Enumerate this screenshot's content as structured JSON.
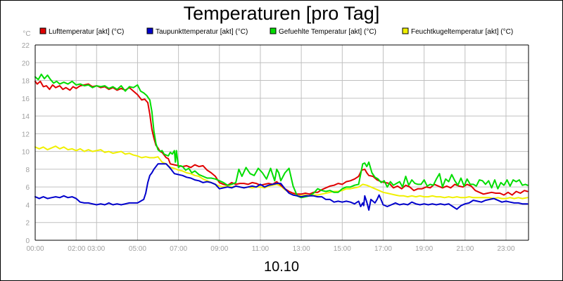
{
  "chart_data": {
    "type": "line",
    "title": "Temperaturen [pro Tag]",
    "unit_label": "°C",
    "xlabel": "10.10",
    "x_tick_labels": [
      "00:00",
      "02:00 03:00",
      "05:00",
      "07:00",
      "09:00",
      "11:00",
      "13:00",
      "15:00",
      "17:00",
      "19:00",
      "21:00",
      "23:00"
    ],
    "x_tick_hours": [
      0,
      2.5,
      5,
      7,
      9,
      11,
      13,
      15,
      17,
      19,
      21,
      23
    ],
    "x_grid_hours": [
      0,
      2,
      3,
      5,
      7,
      9,
      11,
      13,
      15,
      17,
      19,
      21,
      23
    ],
    "xlim": [
      0,
      24.1
    ],
    "ylim": [
      0,
      22
    ],
    "y_ticks": [
      0,
      2,
      4,
      6,
      8,
      10,
      12,
      14,
      16,
      18,
      20,
      22
    ],
    "grid": true,
    "legend_position": "top",
    "series": [
      {
        "name": "Lufttemperatur [akt] (°C)",
        "color": "#e00000",
        "x": [
          0,
          0.1,
          0.25,
          0.4,
          0.55,
          0.7,
          0.85,
          1.0,
          1.2,
          1.35,
          1.5,
          1.7,
          1.85,
          2.0,
          2.2,
          2.4,
          2.6,
          2.8,
          3.0,
          3.2,
          3.4,
          3.6,
          3.8,
          4.0,
          4.2,
          4.4,
          4.6,
          4.8,
          5.0,
          5.2,
          5.35,
          5.5,
          5.6,
          5.7,
          5.8,
          5.9,
          6.0,
          6.1,
          6.2,
          6.3,
          6.4,
          6.5,
          6.6,
          6.8,
          7.0,
          7.2,
          7.4,
          7.6,
          7.8,
          8.0,
          8.2,
          8.4,
          8.6,
          8.8,
          9.0,
          9.2,
          9.4,
          9.6,
          9.8,
          10.0,
          10.2,
          10.4,
          10.6,
          10.8,
          11.0,
          11.2,
          11.4,
          11.6,
          11.8,
          12.0,
          12.2,
          12.4,
          12.6,
          12.8,
          13.0,
          13.2,
          13.4,
          13.6,
          13.8,
          14.0,
          14.2,
          14.4,
          14.6,
          14.8,
          15.0,
          15.2,
          15.4,
          15.6,
          15.8,
          15.95,
          16.1,
          16.2,
          16.3,
          16.5,
          16.7,
          16.9,
          17.1,
          17.3,
          17.5,
          17.7,
          17.9,
          18.1,
          18.3,
          18.5,
          18.7,
          18.9,
          19.1,
          19.3,
          19.5,
          19.7,
          19.9,
          20.1,
          20.3,
          20.5,
          20.7,
          20.9,
          21.1,
          21.3,
          21.5,
          21.7,
          21.9,
          22.1,
          22.3,
          22.5,
          22.7,
          22.9,
          23.1,
          23.3,
          23.5,
          23.7,
          23.9,
          24.05
        ],
        "values": [
          17.9,
          17.6,
          17.9,
          17.3,
          17.4,
          17.0,
          17.5,
          17.2,
          17.4,
          17.0,
          17.2,
          16.9,
          17.3,
          17.1,
          17.4,
          17.5,
          17.6,
          17.3,
          17.4,
          17.2,
          17.3,
          17.0,
          17.2,
          16.9,
          17.1,
          16.9,
          17.2,
          16.8,
          16.4,
          15.8,
          15.9,
          15.5,
          14.2,
          12.5,
          11.5,
          10.7,
          10.4,
          10.0,
          9.9,
          9.6,
          9.3,
          9.2,
          8.6,
          8.5,
          8.4,
          8.3,
          8.4,
          8.2,
          8.5,
          8.3,
          8.4,
          7.9,
          7.6,
          7.2,
          6.5,
          6.3,
          6.2,
          6.5,
          6.3,
          6.4,
          6.4,
          6.3,
          6.5,
          6.4,
          6.2,
          6.3,
          6.4,
          6.3,
          6.6,
          6.2,
          5.8,
          5.5,
          5.3,
          5.2,
          5.2,
          5.3,
          5.2,
          5.4,
          5.4,
          5.7,
          5.9,
          6.1,
          6.2,
          6.4,
          6.3,
          6.6,
          6.7,
          6.9,
          7.2,
          7.9,
          8.0,
          7.6,
          7.3,
          7.2,
          6.8,
          6.6,
          6.5,
          6.4,
          5.9,
          6.1,
          5.8,
          6.2,
          6.0,
          5.6,
          5.8,
          5.8,
          6.0,
          5.9,
          6.3,
          6.1,
          5.9,
          6.1,
          5.9,
          6.3,
          6.1,
          6.0,
          6.3,
          6.1,
          5.6,
          5.4,
          5.2,
          5.3,
          5.4,
          5.3,
          5.3,
          5.1,
          5.4,
          5.1,
          5.5,
          5.3,
          5.6,
          5.5
        ]
      },
      {
        "name": "Taupunkttemperatur [akt] (°C)",
        "color": "#0000cc",
        "x": [
          0,
          0.2,
          0.4,
          0.6,
          0.8,
          1.0,
          1.2,
          1.4,
          1.6,
          1.8,
          2.0,
          2.2,
          2.4,
          2.6,
          2.8,
          3.0,
          3.2,
          3.4,
          3.6,
          3.8,
          4.0,
          4.2,
          4.4,
          4.6,
          4.8,
          5.0,
          5.15,
          5.3,
          5.4,
          5.5,
          5.6,
          5.7,
          5.8,
          6.0,
          6.2,
          6.4,
          6.6,
          6.8,
          7.0,
          7.2,
          7.4,
          7.6,
          7.8,
          8.0,
          8.2,
          8.4,
          8.6,
          8.8,
          9.0,
          9.2,
          9.4,
          9.6,
          9.8,
          10.0,
          10.2,
          10.4,
          10.6,
          10.8,
          11.0,
          11.2,
          11.4,
          11.6,
          11.8,
          12.0,
          12.2,
          12.4,
          12.6,
          12.8,
          13.0,
          13.2,
          13.4,
          13.6,
          13.8,
          14.0,
          14.2,
          14.4,
          14.6,
          14.8,
          15.0,
          15.2,
          15.4,
          15.6,
          15.8,
          15.9,
          16.0,
          16.05,
          16.1,
          16.2,
          16.3,
          16.4,
          16.5,
          16.6,
          16.7,
          16.8,
          17.0,
          17.2,
          17.4,
          17.6,
          17.8,
          18.0,
          18.2,
          18.4,
          18.6,
          18.8,
          19.0,
          19.2,
          19.4,
          19.6,
          19.8,
          20.0,
          20.2,
          20.4,
          20.6,
          20.8,
          21.0,
          21.2,
          21.4,
          21.6,
          21.8,
          22.0,
          22.2,
          22.4,
          22.6,
          22.8,
          23.0,
          23.2,
          23.4,
          23.6,
          23.8,
          24.05
        ],
        "values": [
          4.9,
          4.7,
          4.9,
          4.7,
          4.8,
          4.9,
          4.8,
          5.0,
          4.8,
          4.9,
          4.7,
          4.3,
          4.2,
          4.2,
          4.1,
          4.0,
          4.1,
          4.0,
          4.2,
          4.0,
          4.1,
          4.0,
          4.1,
          4.2,
          4.2,
          4.2,
          4.4,
          4.6,
          5.3,
          6.5,
          7.3,
          7.6,
          8.0,
          8.6,
          8.6,
          8.6,
          8.1,
          7.5,
          7.4,
          7.3,
          7.1,
          7.0,
          6.8,
          6.7,
          6.5,
          6.6,
          6.5,
          6.3,
          5.8,
          5.9,
          6.0,
          5.9,
          6.1,
          6.0,
          5.9,
          6.0,
          6.1,
          6.0,
          6.3,
          6.0,
          6.2,
          6.3,
          6.4,
          6.4,
          5.8,
          5.3,
          5.1,
          5.0,
          4.9,
          5.0,
          5.0,
          5.0,
          4.9,
          4.9,
          4.6,
          4.6,
          4.3,
          4.4,
          4.3,
          4.4,
          4.3,
          4.1,
          4.4,
          3.8,
          4.2,
          3.9,
          5.0,
          4.3,
          3.4,
          4.6,
          4.4,
          4.2,
          4.6,
          5.1,
          4.0,
          3.8,
          4.0,
          4.2,
          4.0,
          4.1,
          4.0,
          4.3,
          4.1,
          4.0,
          4.1,
          4.0,
          4.1,
          4.0,
          4.1,
          4.0,
          4.1,
          3.8,
          3.5,
          3.9,
          4.1,
          4.2,
          4.5,
          4.4,
          4.3,
          4.5,
          4.6,
          4.7,
          4.5,
          4.3,
          4.4,
          4.3,
          4.2,
          4.2,
          4.1,
          4.1
        ]
      },
      {
        "name": "Gefuehlte Temperatur [akt] (°C)",
        "color": "#00dd00",
        "x": [
          0,
          0.15,
          0.3,
          0.45,
          0.6,
          0.75,
          0.9,
          1.05,
          1.2,
          1.4,
          1.6,
          1.8,
          2.0,
          2.2,
          2.4,
          2.6,
          2.8,
          3.0,
          3.2,
          3.4,
          3.6,
          3.8,
          4.0,
          4.2,
          4.4,
          4.6,
          4.8,
          5.0,
          5.15,
          5.3,
          5.45,
          5.6,
          5.7,
          5.8,
          5.9,
          6.0,
          6.1,
          6.2,
          6.3,
          6.5,
          6.6,
          6.7,
          6.8,
          6.85,
          6.9,
          7.0,
          7.1,
          7.2,
          7.35,
          7.5,
          7.65,
          7.8,
          8.0,
          8.2,
          8.4,
          8.6,
          8.8,
          9.0,
          9.2,
          9.4,
          9.6,
          9.8,
          9.95,
          10.1,
          10.3,
          10.5,
          10.7,
          10.9,
          11.1,
          11.3,
          11.5,
          11.7,
          11.8,
          11.9,
          12.0,
          12.2,
          12.4,
          12.6,
          12.8,
          13.0,
          13.2,
          13.4,
          13.6,
          13.8,
          14.0,
          14.2,
          14.4,
          14.6,
          14.8,
          15.0,
          15.2,
          15.4,
          15.6,
          15.8,
          16.0,
          16.1,
          16.2,
          16.3,
          16.45,
          16.6,
          16.75,
          16.9,
          17.05,
          17.2,
          17.35,
          17.5,
          17.65,
          17.8,
          17.95,
          18.1,
          18.25,
          18.4,
          18.55,
          18.7,
          18.85,
          19.0,
          19.15,
          19.3,
          19.45,
          19.6,
          19.75,
          19.9,
          20.05,
          20.2,
          20.35,
          20.5,
          20.65,
          20.8,
          20.95,
          21.1,
          21.25,
          21.4,
          21.55,
          21.7,
          21.85,
          22.0,
          22.15,
          22.3,
          22.45,
          22.6,
          22.75,
          22.9,
          23.05,
          23.2,
          23.35,
          23.5,
          23.65,
          23.8,
          23.95,
          24.05
        ],
        "values": [
          18.4,
          18.1,
          18.7,
          18.2,
          18.6,
          18.1,
          17.7,
          17.9,
          17.6,
          17.8,
          17.6,
          17.9,
          17.5,
          17.6,
          17.4,
          17.5,
          17.2,
          17.4,
          17.3,
          17.4,
          17.1,
          17.3,
          17.0,
          17.4,
          16.8,
          17.3,
          17.2,
          17.5,
          16.8,
          16.6,
          16.3,
          15.8,
          14.5,
          12.3,
          10.9,
          10.2,
          10.0,
          10.1,
          9.7,
          9.5,
          9.9,
          9.7,
          10.1,
          8.8,
          10.1,
          8.2,
          8.4,
          8.3,
          7.9,
          8.1,
          7.6,
          7.8,
          7.4,
          7.2,
          7.0,
          7.0,
          6.9,
          6.7,
          6.5,
          6.2,
          6.3,
          6.5,
          8.0,
          7.2,
          8.2,
          7.5,
          7.3,
          8.1,
          7.6,
          6.9,
          8.1,
          6.7,
          8.0,
          7.6,
          6.7,
          7.6,
          8.1,
          6.1,
          5.0,
          4.8,
          4.9,
          5.0,
          5.3,
          5.8,
          5.6,
          5.5,
          5.6,
          5.4,
          5.4,
          5.8,
          6.0,
          6.0,
          6.2,
          6.3,
          8.6,
          8.7,
          8.3,
          8.8,
          7.6,
          7.1,
          6.9,
          6.5,
          6.7,
          6.0,
          6.6,
          6.2,
          6.4,
          6.6,
          6.0,
          7.2,
          6.2,
          6.8,
          6.4,
          6.3,
          6.3,
          6.8,
          6.1,
          6.3,
          6.2,
          6.9,
          7.5,
          6.0,
          6.9,
          6.6,
          7.4,
          6.7,
          6.2,
          7.0,
          6.1,
          6.9,
          6.3,
          6.3,
          6.1,
          6.8,
          6.7,
          6.3,
          6.7,
          5.9,
          6.8,
          5.8,
          6.5,
          6.2,
          6.8,
          6.1,
          6.8,
          6.6,
          6.8,
          6.2,
          6.3,
          6.2
        ]
      },
      {
        "name": "Feuchtkugeltemperatur [akt] (°C)",
        "color": "#f0f000",
        "x": [
          0,
          0.2,
          0.4,
          0.6,
          0.8,
          1.0,
          1.2,
          1.4,
          1.6,
          1.8,
          2.0,
          2.2,
          2.4,
          2.6,
          2.8,
          3.0,
          3.2,
          3.4,
          3.6,
          3.8,
          4.0,
          4.2,
          4.4,
          4.6,
          4.8,
          5.0,
          5.2,
          5.4,
          5.6,
          5.8,
          6.0,
          6.2,
          6.4,
          6.6,
          6.8,
          7.0,
          7.2,
          7.4,
          7.6,
          7.8,
          8.0,
          8.2,
          8.4,
          8.6,
          8.8,
          9.0,
          9.2,
          9.4,
          9.6,
          9.8,
          10.0,
          10.2,
          10.4,
          10.6,
          10.8,
          11.0,
          11.2,
          11.4,
          11.6,
          11.8,
          12.0,
          12.2,
          12.4,
          12.6,
          12.8,
          13.0,
          13.2,
          13.4,
          13.6,
          13.8,
          14.0,
          14.2,
          14.4,
          14.6,
          14.8,
          15.0,
          15.2,
          15.4,
          15.6,
          15.8,
          16.0,
          16.2,
          16.4,
          16.6,
          16.8,
          17.0,
          17.2,
          17.4,
          17.6,
          17.8,
          18.0,
          18.2,
          18.4,
          18.6,
          18.8,
          19.0,
          19.2,
          19.4,
          19.6,
          19.8,
          20.0,
          20.2,
          20.4,
          20.6,
          20.8,
          21.0,
          21.2,
          21.4,
          21.6,
          21.8,
          22.0,
          22.2,
          22.4,
          22.6,
          22.8,
          23.0,
          23.2,
          23.4,
          23.6,
          23.8,
          24.05
        ],
        "values": [
          10.5,
          10.3,
          10.5,
          10.2,
          10.4,
          10.6,
          10.3,
          10.5,
          10.2,
          10.3,
          10.1,
          10.3,
          10.0,
          10.2,
          10.0,
          10.1,
          10.2,
          9.9,
          10.0,
          9.8,
          9.9,
          10.0,
          9.7,
          9.8,
          9.6,
          9.5,
          9.3,
          9.4,
          9.3,
          9.3,
          9.4,
          8.8,
          8.6,
          8.2,
          8.1,
          7.9,
          7.8,
          7.6,
          7.5,
          7.3,
          7.2,
          6.9,
          6.7,
          6.5,
          6.3,
          6.1,
          6.0,
          6.1,
          6.0,
          6.1,
          6.0,
          5.9,
          6.0,
          5.9,
          6.0,
          6.0,
          5.9,
          6.1,
          6.2,
          6.3,
          6.1,
          5.7,
          5.4,
          5.2,
          5.1,
          5.0,
          5.1,
          5.0,
          5.1,
          5.1,
          5.2,
          5.3,
          5.4,
          5.5,
          5.5,
          5.6,
          5.8,
          5.8,
          5.9,
          6.0,
          6.3,
          6.2,
          6.0,
          5.8,
          5.6,
          5.4,
          5.3,
          5.2,
          5.1,
          5.0,
          5.0,
          4.9,
          5.0,
          4.9,
          5.0,
          4.9,
          4.9,
          5.0,
          4.9,
          4.9,
          4.8,
          4.9,
          4.8,
          4.9,
          4.8,
          4.8,
          4.9,
          4.8,
          4.8,
          4.8,
          4.8,
          4.8,
          4.7,
          4.8,
          4.7,
          4.7,
          4.8,
          4.7,
          4.8,
          4.7,
          4.8
        ]
      }
    ]
  }
}
